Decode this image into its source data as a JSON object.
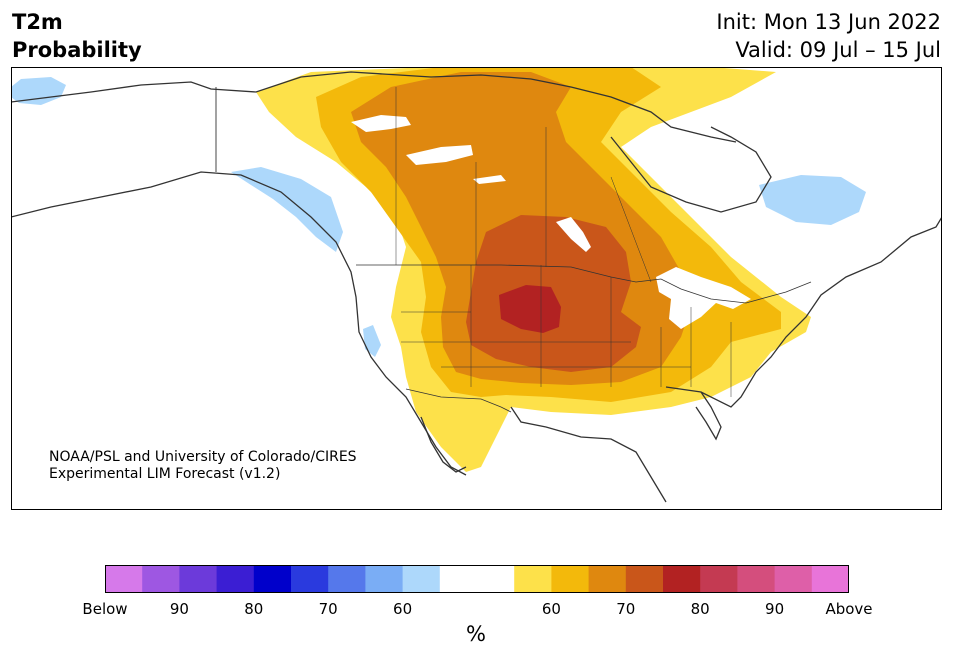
{
  "title": {
    "variable": "T2m",
    "product": "Probability"
  },
  "dates": {
    "init": "Init: Mon 13 Jun 2022",
    "valid": "Valid: 09 Jul – 15 Jul"
  },
  "credit": {
    "line1": "NOAA/PSL and University of Colorado/CIRES",
    "line2": "Experimental LIM Forecast (v1.2)"
  },
  "colorbar": {
    "unit": "%",
    "colors": [
      "#d679ea",
      "#9e57e2",
      "#6c3ada",
      "#3b1ed3",
      "#0000cb",
      "#2a3ade",
      "#5578eb",
      "#7aadf5",
      "#add8fb",
      "#ffffff",
      "#ffffff",
      "#fde14a",
      "#f3b90b",
      "#df880f",
      "#c9561a",
      "#b22222",
      "#c43a52",
      "#d44e7d",
      "#de5fa8",
      "#e874d9"
    ],
    "tick_labels": [
      "Below",
      "90",
      "80",
      "70",
      "60",
      "60",
      "70",
      "80",
      "90",
      "Above"
    ]
  },
  "map_legend": {
    "above_colors": [
      "#fde14a",
      "#f3b90b",
      "#df880f",
      "#c9561a",
      "#b22222"
    ],
    "below_color": "#add8fb"
  }
}
